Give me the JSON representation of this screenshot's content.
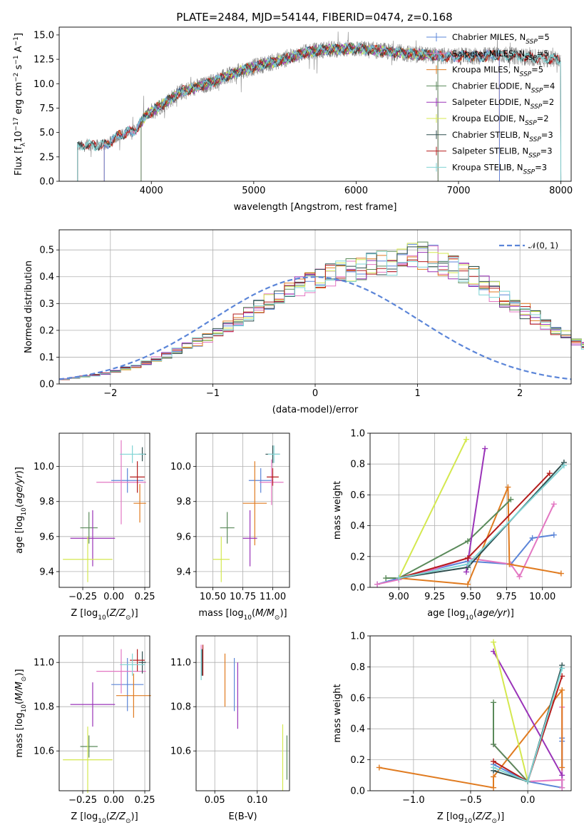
{
  "figure": {
    "title": "PLATE=2484, MJD=54144, FIBERID=0474, z=0.168"
  },
  "colors": {
    "data": "#808080",
    "Chabrier MILES": "#5b85d8",
    "Salpeter MILES": "#e377c2",
    "Kroupa MILES": "#e07b20",
    "Chabrier ELODIE": "#5a8a5a",
    "Salpeter ELODIE": "#9a33b8",
    "Kroupa ELODIE": "#d4e84f",
    "Chabrier STELIB": "#2f4f4f",
    "Salpeter STELIB": "#b51d1d",
    "Kroupa STELIB": "#7fd3d3",
    "normal": "#5b85d8"
  },
  "chart_data": [
    {
      "id": "spectrum",
      "type": "line",
      "title": "PLATE=2484, MJD=54144, FIBERID=0474, z=0.168",
      "xlabel": "wavelength [Angstrom, rest frame]",
      "ylabel": "Flux [f_λ 10^-17 erg cm^-2 s^-1 A^-1]",
      "xlim": [
        3100,
        8100
      ],
      "ylim": [
        0,
        15.8
      ],
      "xticks": [
        4000,
        5000,
        6000,
        7000,
        8000
      ],
      "yticks": [
        0.0,
        2.5,
        5.0,
        7.5,
        10.0,
        12.5,
        15.0
      ],
      "ytick_labels": [
        "0.0",
        "2.5",
        "5.0",
        "7.5",
        "10.0",
        "12.5",
        "15.0"
      ],
      "grid": false,
      "legend_position": "right",
      "legend": [
        {
          "name": "Chabrier MILES",
          "nssp": "5"
        },
        {
          "name": "Salpeter MILES",
          "nssp": "5"
        },
        {
          "name": "Kroupa MILES",
          "nssp": "5"
        },
        {
          "name": "Chabrier ELODIE",
          "nssp": "4"
        },
        {
          "name": "Salpeter ELODIE",
          "nssp": "2"
        },
        {
          "name": "Kroupa ELODIE",
          "nssp": "2"
        },
        {
          "name": "Chabrier STELIB",
          "nssp": "3"
        },
        {
          "name": "Salpeter STELIB",
          "nssp": "3"
        },
        {
          "name": "Kroupa STELIB",
          "nssp": "3"
        }
      ],
      "data_range": [
        3280,
        8000
      ],
      "continuum": [
        [
          3280,
          3.6
        ],
        [
          3400,
          3.7
        ],
        [
          3550,
          3.7
        ],
        [
          3700,
          4.8
        ],
        [
          3850,
          5.3
        ],
        [
          3950,
          6.8
        ],
        [
          4100,
          7.8
        ],
        [
          4300,
          9.2
        ],
        [
          4500,
          9.8
        ],
        [
          4700,
          10.6
        ],
        [
          4900,
          11.4
        ],
        [
          5100,
          12.0
        ],
        [
          5300,
          12.5
        ],
        [
          5500,
          13.2
        ],
        [
          5700,
          13.5
        ],
        [
          6000,
          13.6
        ],
        [
          6300,
          13.3
        ],
        [
          6600,
          13.0
        ],
        [
          6900,
          12.8
        ],
        [
          7200,
          12.8
        ],
        [
          7400,
          13.0
        ],
        [
          7600,
          12.8
        ],
        [
          7800,
          12.6
        ],
        [
          8000,
          12.5
        ]
      ],
      "model_segments": [
        {
          "model": "Kroupa MILES",
          "x": [
            3540,
            7400
          ]
        },
        {
          "model": "Salpeter MILES",
          "x": [
            3540,
            7400
          ]
        },
        {
          "model": "Chabrier MILES",
          "x": [
            3540,
            7400
          ]
        },
        {
          "model": "Kroupa ELODIE",
          "x": [
            3900,
            6800
          ]
        },
        {
          "model": "Salpeter ELODIE",
          "x": [
            3900,
            6800
          ]
        },
        {
          "model": "Chabrier ELODIE",
          "x": [
            3900,
            6800
          ]
        },
        {
          "model": "Salpeter STELIB",
          "x": [
            3280,
            8000
          ]
        },
        {
          "model": "Chabrier STELIB",
          "x": [
            3280,
            8000
          ]
        },
        {
          "model": "Kroupa STELIB",
          "x": [
            3280,
            8000
          ]
        }
      ]
    },
    {
      "id": "residuals",
      "type": "histogram",
      "xlabel": "(data-model)/error",
      "ylabel": "Normed distribution",
      "xlim": [
        -2.5,
        2.5
      ],
      "ylim": [
        0,
        0.575
      ],
      "xticks": [
        -2,
        -1,
        0,
        1,
        2
      ],
      "xtick_labels": [
        "−2",
        "−1",
        "0",
        "1",
        "2"
      ],
      "yticks": [
        0.0,
        0.1,
        0.2,
        0.3,
        0.4,
        0.5
      ],
      "ytick_labels": [
        "0.0",
        "0.1",
        "0.2",
        "0.3",
        "0.4",
        "0.5"
      ],
      "grid": true,
      "legend_position": "top-right",
      "legend_label": "𝒩(0, 1)",
      "bin_width": 0.1,
      "bin_start": -2.5,
      "base_profile": [
        0.018,
        0.022,
        0.027,
        0.033,
        0.04,
        0.048,
        0.058,
        0.068,
        0.08,
        0.092,
        0.107,
        0.122,
        0.138,
        0.156,
        0.175,
        0.195,
        0.216,
        0.238,
        0.261,
        0.284,
        0.305,
        0.325,
        0.345,
        0.362,
        0.378,
        0.393,
        0.406,
        0.418,
        0.428,
        0.436,
        0.442,
        0.448,
        0.455,
        0.47,
        0.485,
        0.48,
        0.47,
        0.455,
        0.44,
        0.42,
        0.398,
        0.372,
        0.345,
        0.32,
        0.297,
        0.272,
        0.249,
        0.226,
        0.204,
        0.183,
        0.163,
        0.145,
        0.128,
        0.112,
        0.098,
        0.085,
        0.073,
        0.062,
        0.053,
        0.045,
        0.038,
        0.032,
        0.027,
        0.023,
        0.02,
        0.018,
        0.016,
        0.015,
        0.014,
        0.013
      ]
    },
    {
      "id": "age-vs-z",
      "type": "scatter",
      "xlabel": "Z [log10(Z/Z⊙)]",
      "ylabel": "age [log10(age/yr)]",
      "xlim": [
        -0.44,
        0.29
      ],
      "ylim": [
        9.31,
        10.19
      ],
      "xticks": [
        -0.25,
        0.0,
        0.25
      ],
      "xtick_labels": [
        "−0.25",
        "0.00",
        "0.25"
      ],
      "yticks": [
        9.4,
        9.6,
        9.8,
        10.0
      ],
      "ytick_labels": [
        "9.4",
        "9.6",
        "9.8",
        "10.0"
      ],
      "grid": true,
      "points": [
        {
          "model": "Chabrier MILES",
          "x": 0.11,
          "xerr": 0.13,
          "y": 9.92,
          "yerr": 0.07
        },
        {
          "model": "Salpeter MILES",
          "x": 0.06,
          "xerr": 0.2,
          "y": 9.91,
          "yerr": 0.24
        },
        {
          "model": "Kroupa MILES",
          "x": 0.21,
          "xerr": 0.05,
          "y": 9.79,
          "yerr": 0.11
        },
        {
          "model": "Chabrier ELODIE",
          "x": -0.2,
          "xerr": 0.07,
          "y": 9.65,
          "yerr": 0.09
        },
        {
          "model": "Salpeter ELODIE",
          "x": -0.17,
          "xerr": 0.18,
          "y": 9.59,
          "yerr": 0.16
        },
        {
          "model": "Kroupa ELODIE",
          "x": -0.21,
          "xerr": 0.2,
          "y": 9.47,
          "yerr": 0.13
        },
        {
          "model": "Chabrier STELIB",
          "x": 0.23,
          "xerr": 0.03,
          "y": 10.07,
          "yerr": 0.04
        },
        {
          "model": "Salpeter STELIB",
          "x": 0.19,
          "xerr": 0.06,
          "y": 9.94,
          "yerr": 0.09
        },
        {
          "model": "Kroupa STELIB",
          "x": 0.15,
          "xerr": 0.1,
          "y": 10.07,
          "yerr": 0.05
        }
      ]
    },
    {
      "id": "age-vs-mass",
      "type": "scatter",
      "xlabel": "mass [log10(M/M⊙)]",
      "xlim": [
        10.36,
        11.14
      ],
      "ylim": [
        9.31,
        10.19
      ],
      "xticks": [
        10.5,
        10.75,
        11.0
      ],
      "xtick_labels": [
        "10.50",
        "10.75",
        "11.00"
      ],
      "yticks": [
        9.4,
        9.6,
        9.8,
        10.0
      ],
      "ytick_labels": [
        "9.4",
        "9.6",
        "9.8",
        "10.0"
      ],
      "grid": true,
      "points": [
        {
          "model": "Chabrier MILES",
          "x": 10.9,
          "xerr": 0.1,
          "y": 9.92,
          "yerr": 0.07
        },
        {
          "model": "Salpeter MILES",
          "x": 10.99,
          "xerr": 0.1,
          "y": 9.91,
          "yerr": 0.13
        },
        {
          "model": "Kroupa MILES",
          "x": 10.85,
          "xerr": 0.1,
          "y": 9.79,
          "yerr": 0.24
        },
        {
          "model": "Chabrier ELODIE",
          "x": 10.62,
          "xerr": 0.06,
          "y": 9.65,
          "yerr": 0.09
        },
        {
          "model": "Salpeter ELODIE",
          "x": 10.81,
          "xerr": 0.06,
          "y": 9.59,
          "yerr": 0.16
        },
        {
          "model": "Kroupa ELODIE",
          "x": 10.57,
          "xerr": 0.07,
          "y": 9.47,
          "yerr": 0.13
        },
        {
          "model": "Chabrier STELIB",
          "x": 11.0,
          "xerr": 0.06,
          "y": 10.07,
          "yerr": 0.05
        },
        {
          "model": "Salpeter STELIB",
          "x": 11.0,
          "xerr": 0.05,
          "y": 9.94,
          "yerr": 0.05
        },
        {
          "model": "Kroupa STELIB",
          "x": 11.01,
          "xerr": 0.05,
          "y": 10.07,
          "yerr": 0.05
        }
      ]
    },
    {
      "id": "weight-vs-age",
      "type": "line",
      "xlabel": "age [log10(age/yr)]",
      "ylabel": "mass weight",
      "xlim": [
        8.8,
        10.2
      ],
      "ylim": [
        0,
        1
      ],
      "xticks": [
        9.0,
        9.25,
        9.5,
        9.75,
        10.0
      ],
      "xtick_labels": [
        "9.00",
        "9.25",
        "9.50",
        "9.75",
        "10.00"
      ],
      "yticks": [
        0.0,
        0.2,
        0.4,
        0.6,
        0.8,
        1.0
      ],
      "ytick_labels": [
        "0.0",
        "0.2",
        "0.4",
        "0.6",
        "0.8",
        "1.0"
      ],
      "grid": true,
      "series": [
        {
          "model": "Chabrier MILES",
          "x": [
            8.85,
            9.0,
            9.48,
            9.78,
            9.93,
            10.08
          ],
          "y": [
            0.02,
            0.06,
            0.17,
            0.15,
            0.32,
            0.34
          ]
        },
        {
          "model": "Salpeter MILES",
          "x": [
            8.85,
            9.0,
            9.25,
            9.48,
            9.78,
            9.84,
            10.08
          ],
          "y": [
            0.02,
            0.05,
            0.12,
            0.19,
            0.15,
            0.07,
            0.54
          ]
        },
        {
          "model": "Kroupa MILES",
          "x": [
            9.0,
            9.48,
            9.76,
            9.77,
            10.13
          ],
          "y": [
            0.06,
            0.02,
            0.65,
            0.15,
            0.09
          ]
        },
        {
          "model": "Chabrier ELODIE",
          "x": [
            8.91,
            9.0,
            9.48,
            9.78
          ],
          "y": [
            0.06,
            0.06,
            0.3,
            0.57
          ]
        },
        {
          "model": "Salpeter ELODIE",
          "x": [
            9.47,
            9.6
          ],
          "y": [
            0.1,
            0.9
          ]
        },
        {
          "model": "Kroupa ELODIE",
          "x": [
            9.0,
            9.47
          ],
          "y": [
            0.06,
            0.96
          ]
        },
        {
          "model": "Chabrier STELIB",
          "x": [
            9.0,
            9.48,
            10.15
          ],
          "y": [
            0.06,
            0.13,
            0.81
          ]
        },
        {
          "model": "Salpeter STELIB",
          "x": [
            9.0,
            9.48,
            10.05
          ],
          "y": [
            0.06,
            0.19,
            0.74
          ]
        },
        {
          "model": "Kroupa STELIB",
          "x": [
            9.0,
            9.48,
            10.15
          ],
          "y": [
            0.06,
            0.15,
            0.79
          ]
        }
      ]
    },
    {
      "id": "mass-vs-z",
      "type": "scatter",
      "xlabel": "Z [log10(Z/Z⊙)]",
      "ylabel": "mass [log10(M/M⊙)]",
      "xlim": [
        -0.44,
        0.29
      ],
      "ylim": [
        10.42,
        11.12
      ],
      "xticks": [
        -0.25,
        0.0,
        0.25
      ],
      "xtick_labels": [
        "−0.25",
        "0.00",
        "0.25"
      ],
      "yticks": [
        10.6,
        10.8,
        11.0
      ],
      "ytick_labels": [
        "10.6",
        "10.8",
        "11.0"
      ],
      "grid": true,
      "points": [
        {
          "model": "Chabrier MILES",
          "x": 0.11,
          "xerr": 0.13,
          "y": 10.9,
          "yerr": 0.12
        },
        {
          "model": "Salpeter MILES",
          "x": 0.06,
          "xerr": 0.2,
          "y": 10.96,
          "yerr": 0.1
        },
        {
          "model": "Kroupa MILES",
          "x": 0.16,
          "xerr": 0.14,
          "y": 10.85,
          "yerr": 0.1
        },
        {
          "model": "Chabrier ELODIE",
          "x": -0.2,
          "xerr": 0.07,
          "y": 10.62,
          "yerr": 0.05
        },
        {
          "model": "Salpeter ELODIE",
          "x": -0.17,
          "xerr": 0.18,
          "y": 10.81,
          "yerr": 0.1
        },
        {
          "model": "Kroupa ELODIE",
          "x": -0.21,
          "xerr": 0.2,
          "y": 10.56,
          "yerr": 0.15
        },
        {
          "model": "Chabrier STELIB",
          "x": 0.23,
          "xerr": 0.03,
          "y": 11.0,
          "yerr": 0.05
        },
        {
          "model": "Salpeter STELIB",
          "x": 0.19,
          "xerr": 0.06,
          "y": 11.01,
          "yerr": 0.05
        },
        {
          "model": "Kroupa STELIB",
          "x": 0.15,
          "xerr": 0.1,
          "y": 10.99,
          "yerr": 0.05
        }
      ]
    },
    {
      "id": "mass-vs-ebv",
      "type": "scatter",
      "xlabel": "E(B-V)",
      "xlim": [
        0.028,
        0.138
      ],
      "ylim": [
        10.42,
        11.12
      ],
      "xticks": [
        0.05,
        0.1
      ],
      "xtick_labels": [
        "0.05",
        "0.10"
      ],
      "yticks": [
        10.6,
        10.8,
        11.0
      ],
      "ytick_labels": [
        "10.6",
        "10.8",
        "11.0"
      ],
      "grid": true,
      "points": [
        {
          "model": "Chabrier MILES",
          "x": 0.073,
          "y": 10.9,
          "yerr": 0.12
        },
        {
          "model": "Salpeter MILES",
          "x": 0.034,
          "y": 11.01,
          "yerr": 0.07
        },
        {
          "model": "Kroupa MILES",
          "x": 0.062,
          "y": 10.92,
          "yerr": 0.12
        },
        {
          "model": "Chabrier ELODIE",
          "x": 0.135,
          "y": 10.57,
          "yerr": 0.1
        },
        {
          "model": "Salpeter ELODIE",
          "x": 0.077,
          "y": 10.85,
          "yerr": 0.15
        },
        {
          "model": "Kroupa ELODIE",
          "x": 0.13,
          "y": 10.57,
          "yerr": 0.15
        },
        {
          "model": "Chabrier STELIB",
          "x": 0.035,
          "y": 11.0,
          "yerr": 0.06
        },
        {
          "model": "Salpeter STELIB",
          "x": 0.036,
          "y": 11.01,
          "yerr": 0.07
        },
        {
          "model": "Kroupa STELIB",
          "x": 0.034,
          "y": 10.99,
          "yerr": 0.07
        }
      ]
    },
    {
      "id": "weight-vs-z",
      "type": "line",
      "xlabel": "Z [log10(Z/Z⊙)]",
      "ylabel": "mass weight",
      "xlim": [
        -1.38,
        0.38
      ],
      "ylim": [
        0,
        1
      ],
      "xticks": [
        -1.0,
        -0.5,
        0.0
      ],
      "xtick_labels": [
        "−1.0",
        "−0.5",
        "0.0"
      ],
      "yticks": [
        0.0,
        0.2,
        0.4,
        0.6,
        0.8,
        1.0
      ],
      "ytick_labels": [
        "0.0",
        "0.2",
        "0.4",
        "0.6",
        "0.8",
        "1.0"
      ],
      "grid": true,
      "series": [
        {
          "model": "Chabrier MILES",
          "x": [
            -0.3,
            0.0,
            0.3,
            0.3,
            0.3
          ],
          "y": [
            0.17,
            0.06,
            0.02,
            0.32,
            0.34
          ]
        },
        {
          "model": "Salpeter MILES",
          "x": [
            -0.3,
            0.0,
            0.3,
            0.3,
            0.3
          ],
          "y": [
            0.3,
            0.06,
            0.07,
            0.54,
            0.02
          ]
        },
        {
          "model": "Kroupa MILES",
          "x": [
            -1.3,
            -0.3,
            -0.3,
            0.3,
            0.3
          ],
          "y": [
            0.15,
            0.02,
            0.09,
            0.65,
            0.15
          ]
        },
        {
          "model": "Chabrier ELODIE",
          "x": [
            -0.3,
            -0.3,
            0.0,
            0.0
          ],
          "y": [
            0.57,
            0.3,
            0.06,
            0.06
          ]
        },
        {
          "model": "Salpeter ELODIE",
          "x": [
            -0.3,
            0.3
          ],
          "y": [
            0.9,
            0.1
          ]
        },
        {
          "model": "Kroupa ELODIE",
          "x": [
            -0.3,
            0.0
          ],
          "y": [
            0.96,
            0.06
          ]
        },
        {
          "model": "Chabrier STELIB",
          "x": [
            -0.3,
            0.0,
            0.3
          ],
          "y": [
            0.13,
            0.06,
            0.81
          ]
        },
        {
          "model": "Salpeter STELIB",
          "x": [
            -0.3,
            0.0,
            0.3
          ],
          "y": [
            0.19,
            0.06,
            0.74
          ]
        },
        {
          "model": "Kroupa STELIB",
          "x": [
            -0.3,
            0.0,
            0.3
          ],
          "y": [
            0.15,
            0.06,
            0.79
          ]
        }
      ]
    }
  ]
}
